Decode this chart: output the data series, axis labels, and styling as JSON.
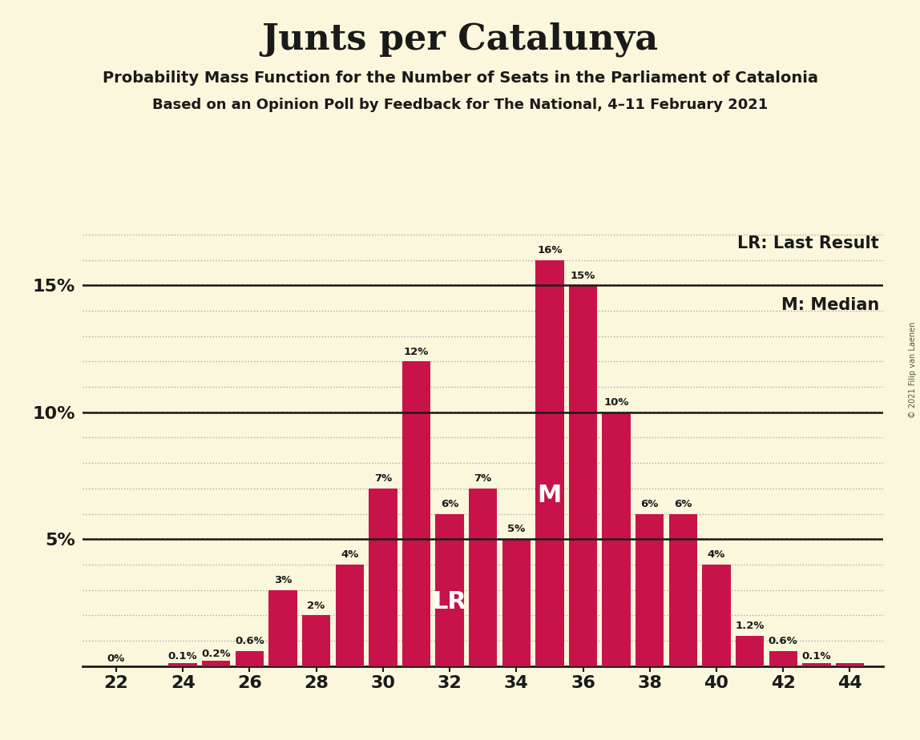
{
  "title": "Junts per Catalunya",
  "subtitle1": "Probability Mass Function for the Number of Seats in the Parliament of Catalonia",
  "subtitle2": "Based on an Opinion Poll by Feedback for The National, 4–11 February 2021",
  "copyright": "© 2021 Filip van Laenen",
  "legend_lr": "LR: Last Result",
  "legend_m": "M: Median",
  "background_color": "#FAF7DC",
  "bar_color": "#C8134A",
  "seats": [
    22,
    23,
    24,
    25,
    26,
    27,
    28,
    29,
    30,
    31,
    32,
    33,
    34,
    35,
    36,
    37,
    38,
    39,
    40,
    41,
    42,
    43,
    44
  ],
  "values": [
    0.0,
    0.0,
    0.1,
    0.2,
    0.6,
    3.0,
    2.0,
    4.0,
    7.0,
    12.0,
    6.0,
    7.0,
    5.0,
    16.0,
    15.0,
    10.0,
    6.0,
    6.0,
    4.0,
    1.2,
    0.6,
    0.1,
    0.1
  ],
  "labels": [
    "0%",
    "0%",
    "0.1%",
    "0.2%",
    "0.6%",
    "3%",
    "2%",
    "4%",
    "7%",
    "12%",
    "6%",
    "7%",
    "5%",
    "16%",
    "15%",
    "10%",
    "6%",
    "6%",
    "4%",
    "1.2%",
    "0.6%",
    "0.1%",
    "0.1%"
  ],
  "show_label": [
    true,
    false,
    true,
    true,
    true,
    true,
    true,
    true,
    true,
    true,
    true,
    true,
    true,
    true,
    true,
    true,
    true,
    true,
    true,
    true,
    true,
    true,
    false
  ],
  "last_result_seat": 32,
  "median_seat": 35,
  "xlim": [
    21.0,
    45.0
  ],
  "ylim": [
    0,
    17.5
  ],
  "ytick_vals": [
    5,
    10,
    15
  ],
  "ytick_labels": [
    "5%",
    "10%",
    "15%"
  ],
  "minor_ytick_interval": 1,
  "xticks": [
    22,
    24,
    26,
    28,
    30,
    32,
    34,
    36,
    38,
    40,
    42,
    44
  ],
  "hline_y": 15,
  "hline_10": 10,
  "hline_5": 5,
  "bar_width": 0.85,
  "label_fontsize": 9.5,
  "tick_fontsize": 16,
  "legend_fontsize": 15,
  "lr_m_fontsize": 22,
  "title_fontsize": 32,
  "subtitle_fontsize": 14,
  "subtitle2_fontsize": 13
}
